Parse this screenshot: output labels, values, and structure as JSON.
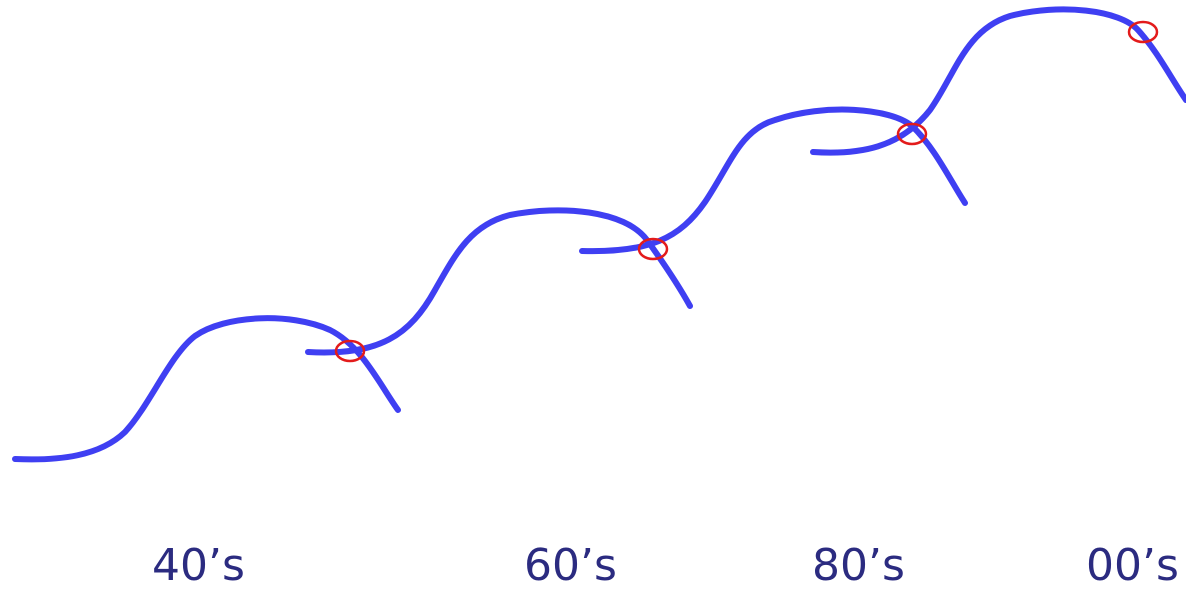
{
  "colors": {
    "curve": "#3f3ff2",
    "marker": "#e31b1b",
    "label": "#2b2b80",
    "background": "#ffffff"
  },
  "eras": [
    {
      "label": "40’s"
    },
    {
      "label": "60’s"
    },
    {
      "label": "80’s"
    },
    {
      "label": "00’s"
    }
  ]
}
